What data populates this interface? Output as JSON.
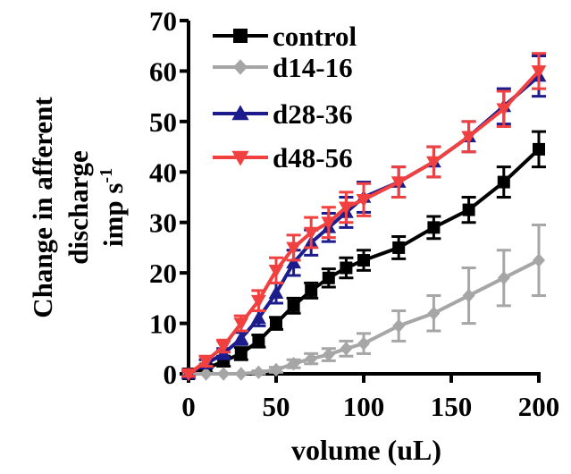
{
  "chart_data": {
    "type": "line",
    "xlabel": "volume (uL)",
    "ylabel_line1": "Change in afferent",
    "ylabel_line2": "discharge",
    "ylabel_line3_base": "imp s",
    "ylabel_line3_sup": "-1",
    "xlim": [
      0,
      200
    ],
    "ylim": [
      0,
      70
    ],
    "xticks": [
      0,
      50,
      100,
      150,
      200
    ],
    "yticks": [
      0,
      10,
      20,
      30,
      40,
      50,
      60,
      70
    ],
    "grid": false,
    "legend_position": "top-left",
    "x": [
      0,
      10,
      20,
      30,
      40,
      50,
      60,
      70,
      80,
      90,
      100,
      120,
      140,
      160,
      180,
      200
    ],
    "series": [
      {
        "name": "control",
        "color": "#000000",
        "marker": "square",
        "values": [
          0,
          1,
          2.5,
          4,
          6.5,
          10,
          13.5,
          16.5,
          19,
          21,
          22.5,
          25,
          29,
          32.5,
          38,
          44.5
        ],
        "errors": [
          0.5,
          0.8,
          1,
          1.2,
          1.2,
          1.2,
          1.5,
          1.5,
          1.8,
          2,
          2,
          2.2,
          2.2,
          2.5,
          3,
          3.5
        ]
      },
      {
        "name": "d14-16",
        "color": "#a6a6a6",
        "marker": "diamond",
        "values": [
          0,
          0,
          0,
          0,
          0.3,
          0.8,
          2,
          3,
          3.8,
          5,
          6,
          9.5,
          12,
          15.5,
          19,
          22.5
        ],
        "errors": [
          0,
          0,
          0,
          0,
          0.3,
          0.5,
          0.8,
          1,
          1.2,
          1.5,
          2,
          3,
          3.5,
          5.5,
          5.5,
          7
        ]
      },
      {
        "name": "d28-36",
        "color": "#1c1c8c",
        "marker": "triangle-up",
        "values": [
          0,
          2,
          4,
          7,
          11,
          16,
          22,
          26,
          29,
          32,
          35,
          38,
          42,
          47,
          53,
          59
        ],
        "errors": [
          0.5,
          0.8,
          1,
          1.2,
          1.5,
          2,
          2.5,
          2.5,
          2.8,
          3,
          3,
          3,
          3,
          3,
          3.5,
          4
        ]
      },
      {
        "name": "d48-56",
        "color": "#f04040",
        "marker": "triangle-down",
        "values": [
          0,
          2.5,
          5.5,
          10,
          14.5,
          20.5,
          25,
          28,
          30,
          33,
          34.5,
          38,
          42,
          47,
          52.5,
          60
        ],
        "errors": [
          0.5,
          1,
          1.2,
          1.5,
          2,
          2.5,
          2.5,
          3,
          3,
          3,
          3.2,
          3,
          3,
          3,
          3.5,
          3.5
        ]
      }
    ]
  }
}
